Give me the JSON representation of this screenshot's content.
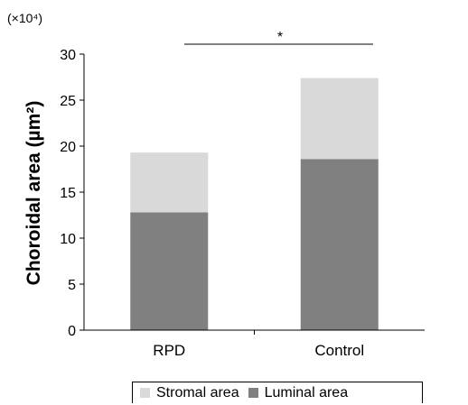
{
  "chart_data": {
    "type": "bar",
    "stacked": true,
    "categories": [
      "RPD",
      "Control"
    ],
    "series": [
      {
        "name": "Luminal area",
        "values": [
          12.8,
          18.6
        ],
        "color": "#808080"
      },
      {
        "name": "Stromal area",
        "values": [
          6.5,
          8.8
        ],
        "color": "#d9d9d9"
      }
    ],
    "ylabel": "Choroidal area (µm²)",
    "multiplier_label": "(×10⁴)",
    "ylim": [
      0,
      30
    ],
    "yticks": [
      "0",
      "5",
      "10",
      "15",
      "20",
      "25",
      "30"
    ],
    "significance": "*",
    "grid": false,
    "legend_position": "bottom"
  }
}
